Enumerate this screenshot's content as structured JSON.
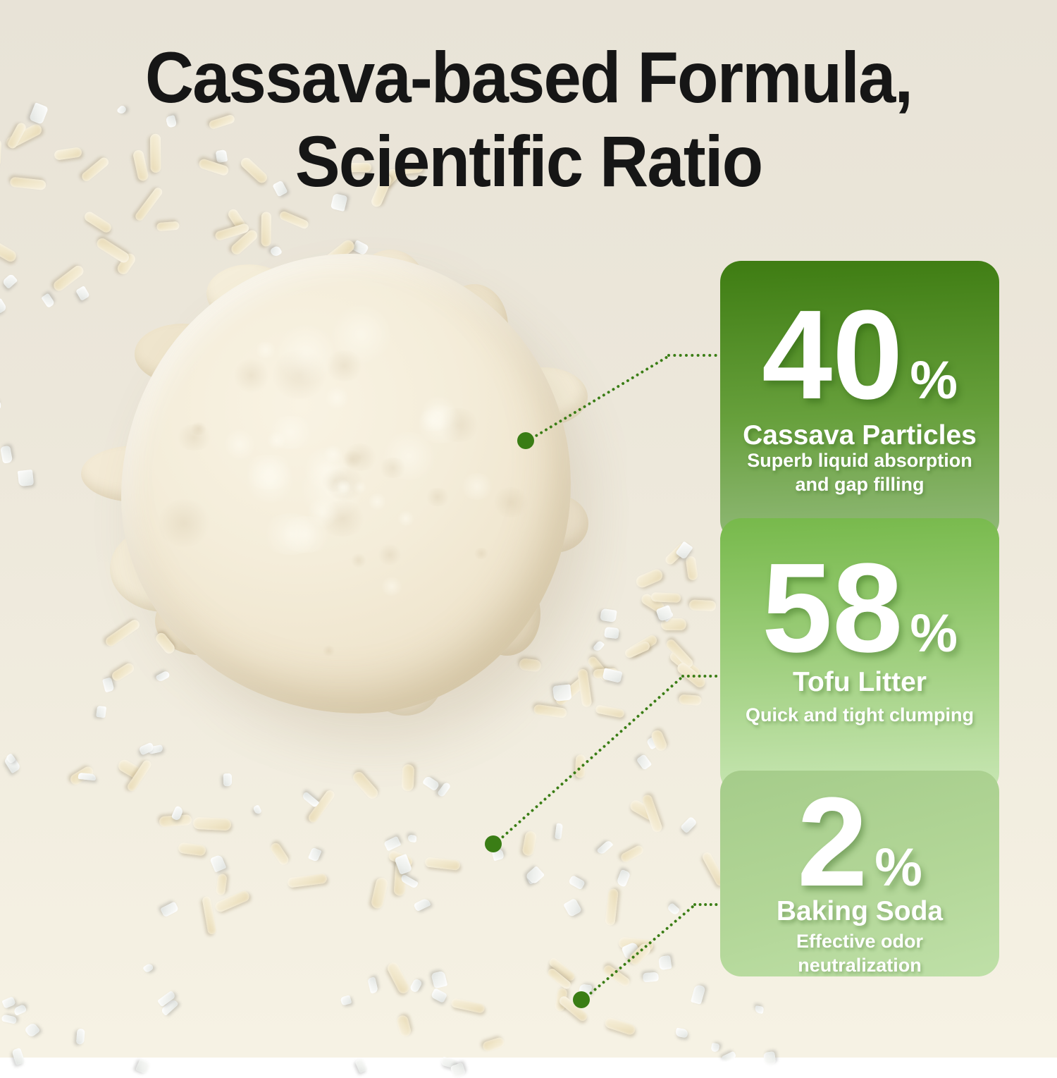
{
  "title": {
    "line1": "Cassava-based Formula,",
    "line2": "Scientific Ratio"
  },
  "cards": [
    {
      "value": "40",
      "unit": "%",
      "name": "Cassava Particles",
      "description": "Superb liquid absorption and gap filling"
    },
    {
      "value": "58",
      "unit": "%",
      "name": "Tofu Litter",
      "description": "Quick and tight clumping"
    },
    {
      "value": "2",
      "unit": "%",
      "name": "Baking Soda",
      "description": "Effective odor neutralization"
    }
  ],
  "colors": {
    "accent_green": "#3a7d15",
    "card1_gradient_top": "#3e7c12",
    "card1_gradient_bottom": "#93ba7b",
    "card2_gradient_top": "#77b94b",
    "card2_gradient_bottom": "#c9e7b5",
    "card3_gradient_top": "#a5cc8a",
    "card3_gradient_bottom": "#bfe0a8",
    "background_top": "#e8e3d7",
    "background_bottom": "#f6f2e4",
    "title_color": "#161616"
  }
}
